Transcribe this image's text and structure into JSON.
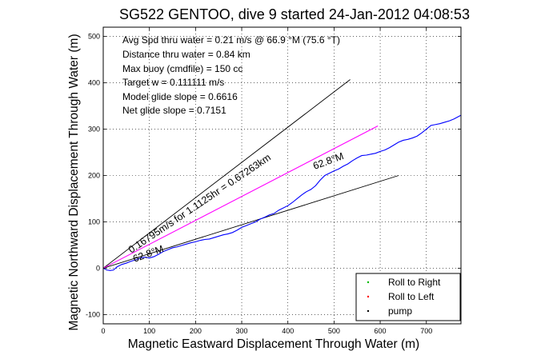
{
  "chart_data": {
    "type": "line",
    "title": "SG522 GENTOO, dive 9 started 24-Jan-2012 04:08:53",
    "xlabel": "Magnetic Eastward Displacement Through Water (m)",
    "ylabel": "Magnetic Northward Displacement Through Water (m)",
    "xlim": [
      0,
      775
    ],
    "ylim": [
      -120,
      520
    ],
    "grid": true,
    "x_ticks": [
      "0",
      "100",
      "200",
      "300",
      "400",
      "500",
      "600",
      "700"
    ],
    "y_ticks": [
      "-100",
      "0",
      "100",
      "200",
      "300",
      "400",
      "500"
    ],
    "info_lines": [
      "Avg Spd thru water = 0.21 m/s @ 66.9 °M (75.6 °T)",
      "Distance thru water = 0.84 km",
      "Max buoy (cmdfile) = 150 cc",
      "Target w = 0.111111 m/s",
      "Model glide slope = 0.6616",
      "Net glide slope = 0.7151"
    ],
    "annotations": {
      "speed_line": "0.16795m/s for 1.1125hr = 0.67263km",
      "heading_lower": "62.8°M",
      "heading_upper": "62.8°M"
    },
    "legend": {
      "placement": "bottom-right",
      "entries": [
        {
          "label": "Roll to Right",
          "color": "#00bb00"
        },
        {
          "label": "Roll to Left",
          "color": "#ff0000"
        },
        {
          "label": "pump",
          "color": "#000000"
        }
      ]
    },
    "series": [
      {
        "color": "#0000ff",
        "x": [
          0,
          8,
          15,
          22,
          30,
          40,
          50,
          60,
          70,
          80,
          90,
          100,
          110,
          120,
          130,
          140,
          150,
          160,
          170,
          180,
          190,
          200,
          210,
          220,
          230,
          240,
          250,
          260,
          270,
          280,
          290,
          300,
          310,
          320,
          330,
          340,
          350,
          360,
          370,
          380,
          390,
          400,
          410,
          420,
          430,
          440,
          450,
          460,
          470,
          480,
          490,
          500,
          510,
          520,
          530,
          540,
          550,
          560,
          570,
          580,
          590,
          600,
          610,
          620,
          630,
          640,
          650,
          660,
          670,
          680,
          690,
          700,
          710,
          720,
          730,
          740,
          750,
          760,
          775
        ],
        "y": [
          0,
          -4,
          -5,
          -4,
          3,
          8,
          11,
          15,
          18,
          22,
          24,
          22,
          25,
          30,
          36,
          40,
          44,
          46,
          49,
          52,
          55,
          57,
          60,
          62,
          63,
          66,
          69,
          72,
          74,
          77,
          82,
          88,
          92,
          96,
          100,
          106,
          110,
          115,
          118,
          125,
          130,
          135,
          142,
          150,
          158,
          165,
          170,
          178,
          190,
          200,
          205,
          210,
          214,
          220,
          225,
          232,
          238,
          243,
          244,
          246,
          248,
          252,
          255,
          260,
          266,
          272,
          276,
          278,
          281,
          285,
          292,
          300,
          308,
          310,
          312,
          315,
          318,
          322,
          330
        ]
      },
      {
        "color": "#ff00ff",
        "x": [
          0,
          595
        ],
        "y": [
          0,
          307
        ]
      }
    ],
    "reference_lines": [
      {
        "color": "#000000",
        "x": [
          0,
          535
        ],
        "y": [
          0,
          407
        ]
      },
      {
        "color": "#000000",
        "x": [
          0,
          640
        ],
        "y": [
          0,
          200
        ]
      }
    ]
  }
}
